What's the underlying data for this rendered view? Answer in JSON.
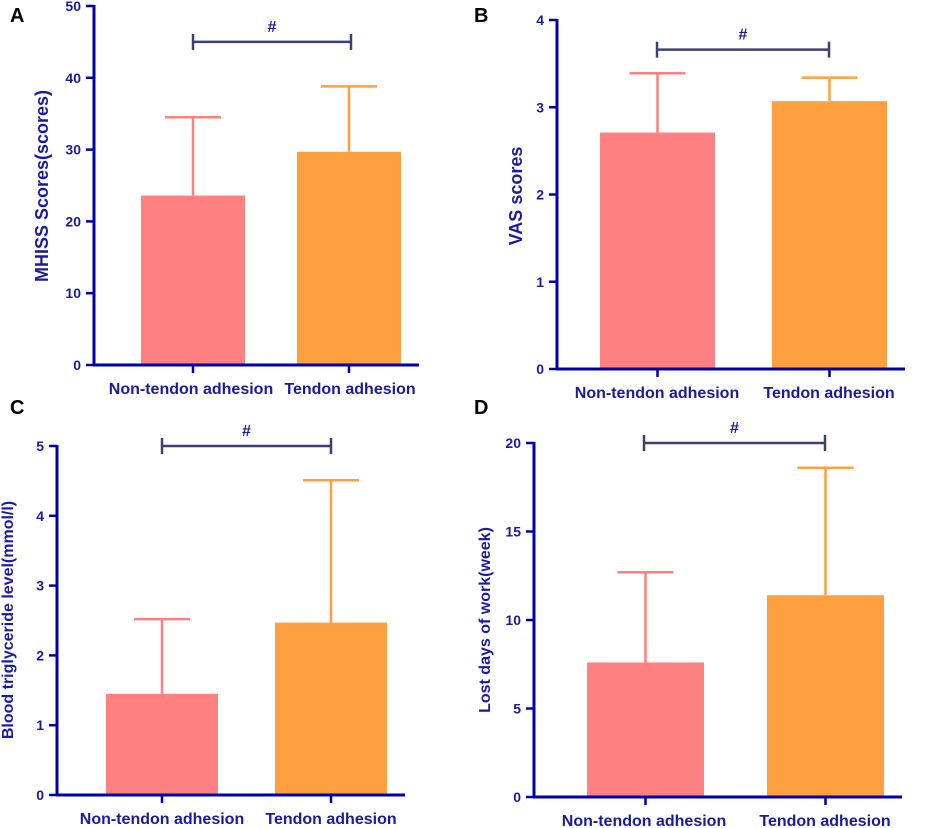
{
  "chart_data": [
    {
      "panel": "A",
      "type": "bar",
      "title": "",
      "xlabel": "",
      "ylabel": "MHISS Scores(scores)",
      "categories": [
        "Non-tendon adhesion",
        "Tendon adhesion"
      ],
      "values": [
        23.6,
        29.7
      ],
      "errors": [
        10.9,
        9.1
      ],
      "colors": [
        "#ff8080",
        "#ffa040"
      ],
      "ylim": [
        0,
        50
      ],
      "yticks": [
        0,
        10,
        20,
        30,
        40,
        50
      ],
      "tick_labels": [
        "0",
        "10",
        "20",
        "30",
        "40",
        "50"
      ],
      "significance": "#",
      "significance_level": 45
    },
    {
      "panel": "B",
      "type": "bar",
      "title": "",
      "xlabel": "",
      "ylabel": "VAS scores",
      "categories": [
        "Non-tendon adhesion",
        "Tendon adhesion"
      ],
      "values": [
        2.71,
        3.07
      ],
      "errors": [
        0.68,
        0.27
      ],
      "colors": [
        "#ff8080",
        "#ffa040"
      ],
      "ylim": [
        0,
        4
      ],
      "yticks": [
        0,
        1,
        2,
        3,
        4
      ],
      "tick_labels": [
        "0",
        "1",
        "2",
        "3",
        "4"
      ],
      "significance": "#",
      "significance_level": 3.66
    },
    {
      "panel": "C",
      "type": "bar",
      "title": "",
      "xlabel": "",
      "ylabel": "Blood triglyceride level(mmol/l)",
      "categories": [
        "Non-tendon adhesion",
        "Tendon adhesion"
      ],
      "values": [
        1.45,
        2.47
      ],
      "errors": [
        1.07,
        2.04
      ],
      "colors": [
        "#ff8080",
        "#ffa040"
      ],
      "ylim": [
        0,
        5
      ],
      "yticks": [
        0,
        1,
        2,
        3,
        4,
        5
      ],
      "tick_labels": [
        "0",
        "1",
        "2",
        "3",
        "4",
        "5"
      ],
      "significance": "#",
      "significance_level": 5.0
    },
    {
      "panel": "D",
      "type": "bar",
      "title": "",
      "xlabel": "",
      "ylabel": "Lost days of work(week)",
      "categories": [
        "Non-tendon adhesion",
        "Tendon adhesion"
      ],
      "values": [
        7.6,
        11.4
      ],
      "errors": [
        5.1,
        7.2
      ],
      "colors": [
        "#ff8080",
        "#ffa040"
      ],
      "ylim": [
        0,
        20
      ],
      "yticks": [
        0,
        5,
        10,
        15,
        20
      ],
      "tick_labels": [
        "0",
        "5",
        "10",
        "15",
        "20"
      ],
      "significance": "#",
      "significance_level": 20
    }
  ],
  "colors": {
    "axis": "#0000a8",
    "text": "#1a1aa0",
    "error_bar_non_tendon": "#ff8080",
    "error_bar_tendon": "#ffa040",
    "significance_bracket": "#3c4070",
    "panel_letter": "#000000"
  }
}
